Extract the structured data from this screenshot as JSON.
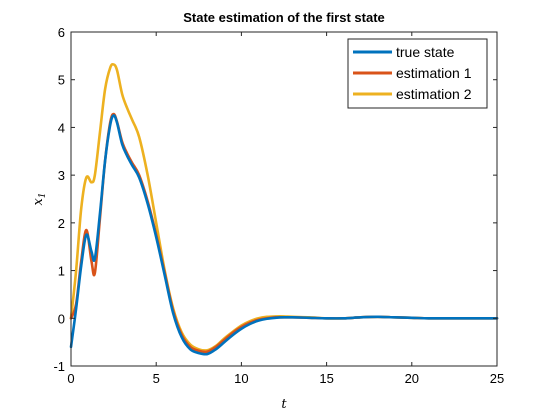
{
  "chart_data": {
    "type": "line",
    "title": "State estimation of the first state",
    "xlabel": "t",
    "ylabel": "x",
    "ylabel_subscript": "1",
    "xlim": [
      0,
      25
    ],
    "ylim": [
      -1,
      6
    ],
    "xticks": [
      0,
      5,
      10,
      15,
      20,
      25
    ],
    "yticks": [
      -1,
      0,
      1,
      2,
      3,
      4,
      5,
      6
    ],
    "grid": false,
    "legend_position": "top-right",
    "series": [
      {
        "name": "true state",
        "color": "#0072BD",
        "x": [
          0,
          0.3,
          0.6,
          0.9,
          1.2,
          1.4,
          1.7,
          2.0,
          2.3,
          2.5,
          2.7,
          3.0,
          3.3,
          3.6,
          4.0,
          4.5,
          5.0,
          5.5,
          6.0,
          6.5,
          7.0,
          7.5,
          8.0,
          8.5,
          9.0,
          9.5,
          10.0,
          10.5,
          11.0,
          11.5,
          12.0,
          12.5,
          13.0,
          14.0,
          15.0,
          16.0,
          17.0,
          18.0,
          19.0,
          20.0,
          21.0,
          22.0,
          23.0,
          24.0,
          25.0
        ],
        "y": [
          -0.6,
          0.2,
          1.1,
          1.75,
          1.4,
          1.25,
          2.2,
          3.3,
          4.05,
          4.25,
          4.1,
          3.65,
          3.4,
          3.2,
          2.95,
          2.4,
          1.7,
          0.9,
          0.1,
          -0.4,
          -0.65,
          -0.73,
          -0.75,
          -0.65,
          -0.5,
          -0.35,
          -0.22,
          -0.12,
          -0.05,
          -0.01,
          0.01,
          0.02,
          0.02,
          0.01,
          0.0,
          0.0,
          0.02,
          0.03,
          0.02,
          0.01,
          0.0,
          0.0,
          0.0,
          0.0,
          0.0
        ]
      },
      {
        "name": "estimation 1",
        "color": "#D95319",
        "x": [
          0,
          0.3,
          0.6,
          0.9,
          1.2,
          1.4,
          1.7,
          2.0,
          2.3,
          2.5,
          2.7,
          3.0,
          3.3,
          3.6,
          4.0,
          4.5,
          5.0,
          5.5,
          6.0,
          6.5,
          7.0,
          7.5,
          8.0,
          8.5,
          9.0,
          9.5,
          10.0,
          10.5,
          11.0,
          11.5,
          12.0,
          12.5,
          13.0,
          14.0,
          15.0,
          16.0,
          17.0,
          18.0,
          19.0,
          20.0,
          21.0,
          22.0,
          23.0,
          24.0,
          25.0
        ],
        "y": [
          0.0,
          0.3,
          1.2,
          1.85,
          1.2,
          0.95,
          2.1,
          3.3,
          4.1,
          4.28,
          4.12,
          3.7,
          3.45,
          3.25,
          3.0,
          2.45,
          1.75,
          0.95,
          0.15,
          -0.35,
          -0.6,
          -0.68,
          -0.7,
          -0.6,
          -0.45,
          -0.3,
          -0.18,
          -0.09,
          -0.03,
          0.0,
          0.02,
          0.02,
          0.02,
          0.01,
          0.0,
          0.0,
          0.02,
          0.03,
          0.02,
          0.01,
          0.0,
          0.0,
          0.0,
          0.0,
          0.0
        ]
      },
      {
        "name": "estimation 2",
        "color": "#EDB120",
        "x": [
          0,
          0.3,
          0.6,
          0.9,
          1.2,
          1.4,
          1.7,
          2.0,
          2.3,
          2.5,
          2.7,
          3.0,
          3.3,
          3.6,
          4.0,
          4.5,
          5.0,
          5.5,
          6.0,
          6.5,
          7.0,
          7.5,
          8.0,
          8.5,
          9.0,
          9.5,
          10.0,
          10.5,
          11.0,
          11.5,
          12.0,
          12.5,
          13.0,
          14.0,
          15.0,
          16.0,
          17.0,
          18.0,
          19.0,
          20.0,
          21.0,
          22.0,
          23.0,
          24.0,
          25.0
        ],
        "y": [
          0.0,
          1.0,
          2.3,
          2.95,
          2.85,
          3.0,
          3.9,
          4.8,
          5.25,
          5.32,
          5.2,
          4.7,
          4.4,
          4.15,
          3.8,
          3.0,
          2.0,
          1.0,
          0.2,
          -0.3,
          -0.55,
          -0.65,
          -0.67,
          -0.58,
          -0.42,
          -0.28,
          -0.15,
          -0.06,
          0.0,
          0.03,
          0.04,
          0.04,
          0.03,
          0.02,
          0.0,
          0.0,
          0.02,
          0.03,
          0.02,
          0.01,
          0.0,
          0.0,
          0.0,
          0.0,
          0.0
        ]
      }
    ]
  }
}
